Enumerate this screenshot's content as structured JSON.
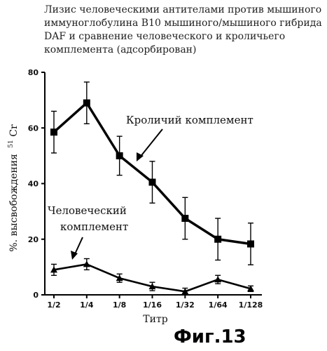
{
  "chart_data": {
    "type": "line",
    "title": [
      "Лизис человеческими антителами против мышиного",
      "иммуноглобулина В10 мышиного/мышиного гибрида",
      "DAF и сравнение человеческого и кроличьего",
      "комплемента (адсорбирован)"
    ],
    "xlabel": "Титр",
    "ylabel": "%. высвобождения",
    "ylabel_isotope": "51",
    "ylabel_element": "Cr",
    "categories": [
      "1/2",
      "1/4",
      "1/8",
      "1/16",
      "1/32",
      "1/64",
      "1/128"
    ],
    "ylim": [
      0,
      80
    ],
    "yticks": [
      "0",
      "20",
      "40",
      "60",
      "80"
    ],
    "series": [
      {
        "name": "Кроличий комплемент",
        "marker": "square",
        "values": [
          58.5,
          69,
          50,
          40.5,
          27.5,
          20,
          18.3
        ],
        "err": [
          7.5,
          7.5,
          7,
          7.5,
          7.5,
          7.5,
          7.5
        ]
      },
      {
        "name": "Человеческий комплемент",
        "marker": "triangle",
        "values": [
          9,
          11,
          6,
          3,
          1.2,
          5.5,
          2.2
        ],
        "err": [
          2,
          2,
          1.5,
          1.5,
          1.2,
          1.5,
          1
        ]
      }
    ],
    "annotations": {
      "rabbit": "Кроличий комплемент",
      "human_line1": "Человеческий",
      "human_line2": "комплемент"
    },
    "figure_label": "Фиг.13"
  }
}
